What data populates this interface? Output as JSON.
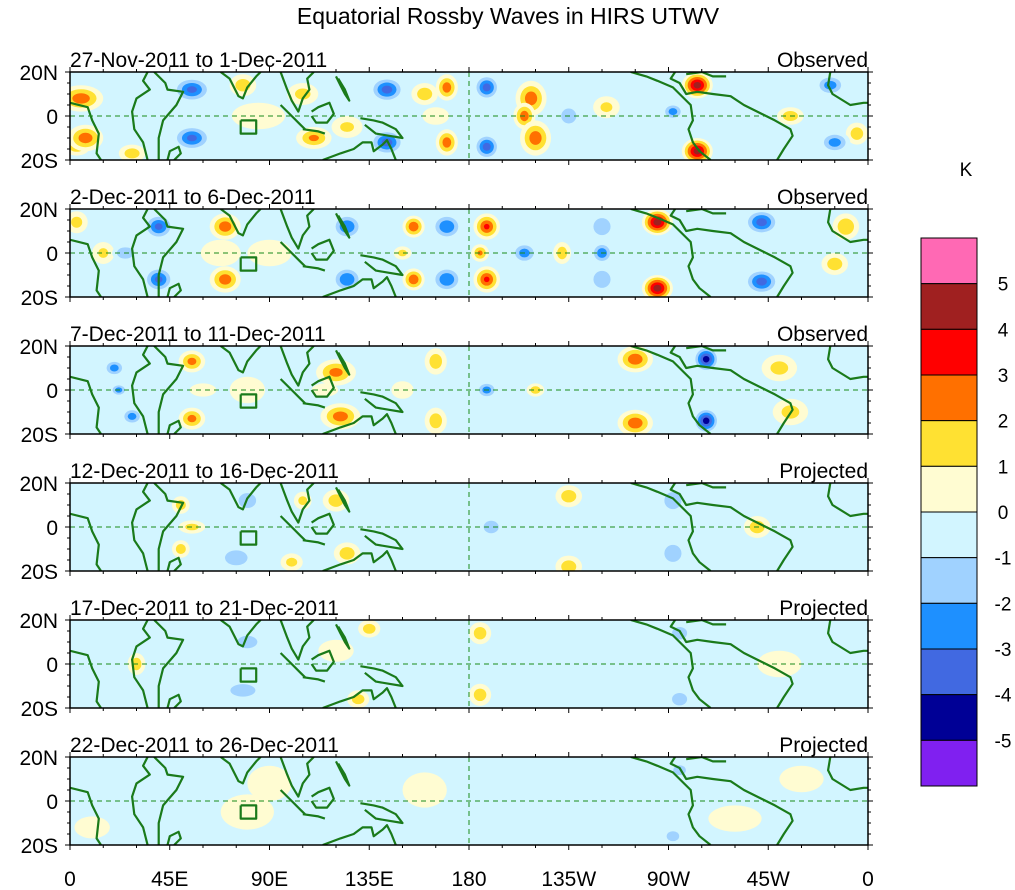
{
  "chart_data": {
    "type": "heatmap",
    "title": "Equatorial Rossby Waves in HIRS UTWV",
    "units_label": "K",
    "colorbar": {
      "levels": [
        -5,
        -4,
        -3,
        -2,
        -1,
        0,
        1,
        2,
        3,
        4,
        5
      ],
      "tick_labels": [
        "5",
        "4",
        "3",
        "2",
        "1",
        "0",
        "-1",
        "-2",
        "-3",
        "-4",
        "-5"
      ],
      "colors_low_to_high": [
        "#8020f0",
        "#000096",
        "#4169e1",
        "#1e90ff",
        "#a0d2ff",
        "#d2f5ff",
        "#fffcd2",
        "#ffe132",
        "#ff7000",
        "#ff0000",
        "#a02020",
        "#ff69b4"
      ],
      "orientation": "vertical",
      "placement": "right"
    },
    "x_axis": {
      "range_deg_east": [
        0,
        360
      ],
      "ticks": [
        0,
        45,
        90,
        135,
        180,
        225,
        270,
        315,
        360
      ],
      "tick_labels": [
        "0",
        "45E",
        "90E",
        "135E",
        "180",
        "135W",
        "90W",
        "45W",
        "0"
      ]
    },
    "y_axis": {
      "range_deg": [
        -20,
        20
      ],
      "ticks": [
        20,
        0,
        -20
      ],
      "tick_labels": [
        "20N",
        "0",
        "20S"
      ]
    },
    "reference_lines": {
      "equator": 0,
      "dateline_deg_east": 180,
      "style": "dashed",
      "color": "#1a8a1a"
    },
    "coast_color": "#1a7a1a",
    "panels": [
      {
        "date_range": "27-Nov-2011 to 1-Dec-2011",
        "status": "Observed",
        "anomalies": [
          [
            5,
            8,
            2.5,
            10,
            6
          ],
          [
            7,
            -10,
            2.5,
            8,
            6
          ],
          [
            3,
            -14,
            1.5,
            6,
            4
          ],
          [
            28,
            -17,
            1.5,
            6,
            4
          ],
          [
            24,
            14,
            -1,
            8,
            5
          ],
          [
            55,
            12,
            -3.2,
            9,
            6
          ],
          [
            55,
            -10,
            -3.2,
            9,
            6
          ],
          [
            45,
            0,
            -1,
            10,
            6
          ],
          [
            78,
            14,
            1.5,
            6,
            5
          ],
          [
            85,
            0,
            0.6,
            12,
            6
          ],
          [
            110,
            -10,
            2,
            8,
            5
          ],
          [
            105,
            10,
            1.2,
            7,
            5
          ],
          [
            125,
            -5,
            1,
            7,
            5
          ],
          [
            143,
            12,
            -3.5,
            8,
            6
          ],
          [
            143,
            -12,
            -3.5,
            8,
            6
          ],
          [
            160,
            10,
            1.5,
            6,
            5
          ],
          [
            165,
            0,
            0.6,
            6,
            4
          ],
          [
            170,
            13,
            2.5,
            5,
            6
          ],
          [
            170,
            -12,
            2.5,
            5,
            6
          ],
          [
            188,
            13,
            -3.5,
            6,
            6
          ],
          [
            188,
            -14,
            -3.5,
            6,
            6
          ],
          [
            208,
            8,
            2.5,
            7,
            8
          ],
          [
            205,
            0,
            2.5,
            5,
            6
          ],
          [
            210,
            -10,
            2.5,
            7,
            8
          ],
          [
            225,
            0,
            -1.5,
            6,
            6
          ],
          [
            242,
            4,
            1,
            6,
            5
          ],
          [
            272,
            2,
            -2.5,
            5,
            4
          ],
          [
            283,
            14,
            4.5,
            7,
            6
          ],
          [
            283,
            -16,
            4.5,
            7,
            6
          ],
          [
            310,
            5,
            -1,
            8,
            6
          ],
          [
            325,
            0,
            1.5,
            6,
            4
          ],
          [
            343,
            14,
            -2.5,
            7,
            5
          ],
          [
            345,
            -12,
            -2.5,
            7,
            5
          ],
          [
            355,
            -8,
            1.5,
            5,
            5
          ]
        ]
      },
      {
        "date_range": "2-Dec-2011 to 6-Dec-2011",
        "status": "Observed",
        "anomalies": [
          [
            3,
            14,
            1.2,
            5,
            5
          ],
          [
            25,
            0,
            -2,
            6,
            4
          ],
          [
            40,
            12,
            -3.2,
            7,
            6
          ],
          [
            40,
            -12,
            -3.2,
            7,
            6
          ],
          [
            15,
            0,
            1,
            5,
            5
          ],
          [
            70,
            12,
            2.5,
            7,
            6
          ],
          [
            70,
            -12,
            2.5,
            7,
            6
          ],
          [
            68,
            0,
            0.8,
            9,
            6
          ],
          [
            90,
            0,
            0.5,
            10,
            6
          ],
          [
            125,
            12,
            -3,
            7,
            6
          ],
          [
            125,
            -12,
            -3,
            7,
            6
          ],
          [
            155,
            12,
            2.8,
            5,
            5
          ],
          [
            155,
            -12,
            2.8,
            5,
            5
          ],
          [
            150,
            0,
            1.2,
            4,
            3
          ],
          [
            170,
            12,
            -3,
            7,
            6
          ],
          [
            170,
            -12,
            -3,
            7,
            6
          ],
          [
            188,
            12,
            3,
            6,
            6
          ],
          [
            188,
            -12,
            3,
            6,
            6
          ],
          [
            185,
            0,
            2,
            4,
            4
          ],
          [
            205,
            0,
            -2.5,
            6,
            5
          ],
          [
            222,
            0,
            1.5,
            4,
            5
          ],
          [
            240,
            0,
            -2.8,
            5,
            5
          ],
          [
            240,
            12,
            -2,
            6,
            6
          ],
          [
            240,
            -12,
            -2,
            6,
            6
          ],
          [
            265,
            14,
            4.6,
            7,
            6
          ],
          [
            265,
            -16,
            4.6,
            7,
            6
          ],
          [
            312,
            14,
            -3.5,
            8,
            6
          ],
          [
            312,
            -13,
            -3.5,
            8,
            6
          ],
          [
            350,
            12,
            1.8,
            6,
            6
          ],
          [
            345,
            -5,
            1.5,
            6,
            5
          ],
          [
            355,
            0,
            -1,
            5,
            4
          ]
        ]
      },
      {
        "date_range": "7-Dec-2011 to 11-Dec-2011",
        "status": "Observed",
        "anomalies": [
          [
            20,
            10,
            -2.5,
            5,
            4
          ],
          [
            22,
            0,
            -2.5,
            4,
            3
          ],
          [
            28,
            -12,
            -2.5,
            5,
            4
          ],
          [
            55,
            13,
            2.2,
            6,
            5
          ],
          [
            55,
            -13,
            2.2,
            6,
            5
          ],
          [
            60,
            0,
            0.8,
            6,
            3
          ],
          [
            80,
            0,
            0.6,
            8,
            6
          ],
          [
            120,
            8,
            2.2,
            9,
            6
          ],
          [
            122,
            -12,
            2.4,
            9,
            6
          ],
          [
            115,
            0,
            0.6,
            6,
            3
          ],
          [
            150,
            0,
            0.6,
            5,
            4
          ],
          [
            165,
            13,
            1.5,
            5,
            6
          ],
          [
            165,
            -14,
            1.5,
            5,
            6
          ],
          [
            188,
            0,
            -2.5,
            5,
            4
          ],
          [
            210,
            0,
            1.5,
            4,
            3
          ],
          [
            230,
            12,
            -1,
            6,
            6
          ],
          [
            230,
            -12,
            -1,
            6,
            6
          ],
          [
            255,
            14,
            2.6,
            8,
            6
          ],
          [
            255,
            -15,
            2.6,
            8,
            6
          ],
          [
            287,
            14,
            -4.5,
            6,
            6
          ],
          [
            287,
            -14,
            -4.5,
            6,
            6
          ],
          [
            320,
            10,
            1.2,
            8,
            6
          ],
          [
            325,
            -10,
            1.2,
            8,
            6
          ]
        ]
      },
      {
        "date_range": "12-Dec-2011 to 16-Dec-2011",
        "status": "Projected",
        "anomalies": [
          [
            15,
            10,
            -1,
            6,
            5
          ],
          [
            10,
            -12,
            -0.5,
            8,
            5
          ],
          [
            50,
            -10,
            1.5,
            4,
            4
          ],
          [
            50,
            10,
            1.5,
            4,
            4
          ],
          [
            55,
            0,
            1.2,
            6,
            3
          ],
          [
            80,
            12,
            -1.5,
            7,
            6
          ],
          [
            75,
            -14,
            -1.5,
            9,
            6
          ],
          [
            120,
            12,
            1.5,
            6,
            5
          ],
          [
            125,
            -12,
            1.5,
            6,
            5
          ],
          [
            105,
            12,
            1.2,
            4,
            4
          ],
          [
            100,
            -16,
            1.2,
            5,
            4
          ],
          [
            148,
            12,
            -1,
            6,
            6
          ],
          [
            145,
            -10,
            -1,
            6,
            6
          ],
          [
            190,
            0,
            -1.5,
            6,
            5
          ],
          [
            225,
            14,
            1.5,
            6,
            5
          ],
          [
            225,
            -18,
            1.5,
            6,
            5
          ],
          [
            272,
            12,
            -2,
            6,
            6
          ],
          [
            272,
            -12,
            -2,
            6,
            6
          ],
          [
            310,
            0,
            1.5,
            6,
            5
          ],
          [
            340,
            5,
            -0.5,
            10,
            8
          ]
        ]
      },
      {
        "date_range": "17-Dec-2011 to 21-Dec-2011",
        "status": "Projected",
        "anomalies": [
          [
            30,
            0,
            1.5,
            4,
            5
          ],
          [
            80,
            10,
            -1.5,
            8,
            5
          ],
          [
            78,
            -12,
            -1.5,
            10,
            5
          ],
          [
            135,
            16,
            1.5,
            5,
            4
          ],
          [
            130,
            -16,
            1.5,
            5,
            4
          ],
          [
            120,
            6,
            0.6,
            8,
            5
          ],
          [
            160,
            0,
            -0.5,
            6,
            5
          ],
          [
            185,
            14,
            1.5,
            5,
            5
          ],
          [
            185,
            -14,
            1.5,
            5,
            5
          ],
          [
            230,
            5,
            -0.5,
            10,
            6
          ],
          [
            275,
            14,
            -1.5,
            6,
            5
          ],
          [
            275,
            -16,
            -1.5,
            6,
            5
          ],
          [
            320,
            0,
            0.6,
            10,
            6
          ],
          [
            345,
            5,
            -0.5,
            10,
            8
          ]
        ]
      },
      {
        "date_range": "22-Dec-2011 to 26-Dec-2011",
        "status": "Projected",
        "anomalies": [
          [
            15,
            10,
            -0.5,
            8,
            6
          ],
          [
            10,
            -12,
            0.5,
            8,
            5
          ],
          [
            80,
            -5,
            0.5,
            12,
            8
          ],
          [
            90,
            8,
            0.5,
            10,
            8
          ],
          [
            120,
            0,
            -0.5,
            12,
            6
          ],
          [
            160,
            5,
            0.5,
            10,
            8
          ],
          [
            200,
            -5,
            -0.5,
            16,
            8
          ],
          [
            240,
            0,
            -0.5,
            14,
            8
          ],
          [
            275,
            14,
            -1.5,
            5,
            4
          ],
          [
            272,
            -16,
            -1.5,
            5,
            4
          ],
          [
            300,
            -8,
            0.5,
            12,
            6
          ],
          [
            330,
            10,
            0.5,
            10,
            6
          ]
        ]
      }
    ]
  }
}
